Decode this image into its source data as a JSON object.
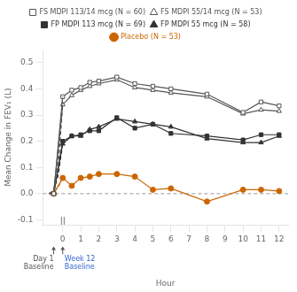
{
  "chart_data": {
    "type": "line",
    "xlabel": "Hour",
    "ylabel": "Mean Change in FEV₁ (L)",
    "xlim": [
      -1.1,
      12.5
    ],
    "xticks": [
      0,
      1,
      2,
      3,
      4,
      5,
      6,
      7,
      8,
      9,
      10,
      11,
      12
    ],
    "ylim": [
      -0.12,
      0.55
    ],
    "yticks": [
      -0.1,
      {
        "value": 0,
        "label": "0.0"
      },
      0.1,
      0.2,
      0.3,
      0.4,
      0.5
    ],
    "x": [
      -0.5,
      0,
      0.5,
      1,
      1.5,
      2,
      3,
      4,
      5,
      6,
      8,
      10,
      11,
      12
    ],
    "pre_x": [
      -0.75,
      -0.5,
      -0.25,
      0
    ],
    "series": [
      {
        "name": "FS MDPI 113/14 mcg (N = 60)",
        "color": "#555555",
        "marker": "square-open",
        "values": [
          0.0,
          0.37,
          0.395,
          0.405,
          0.425,
          0.43,
          0.445,
          0.42,
          0.41,
          0.4,
          0.38,
          0.31,
          0.35,
          0.335
        ],
        "pre_values": [
          0.0,
          0.01,
          0.13,
          0.37
        ]
      },
      {
        "name": "FS MDPI 55/14 mcg (N = 53)",
        "color": "#555555",
        "marker": "triangle-open",
        "values": [
          0.0,
          0.34,
          0.375,
          0.395,
          0.41,
          0.42,
          0.435,
          0.405,
          0.395,
          0.385,
          0.37,
          0.305,
          0.32,
          0.315
        ],
        "pre_values": [
          0.0,
          0.01,
          0.1,
          0.34
        ]
      },
      {
        "name": "FP MDPI 113 mcg (N = 69)",
        "color": "#333333",
        "marker": "square",
        "values": [
          0.0,
          0.2,
          0.22,
          0.225,
          0.24,
          0.24,
          0.29,
          0.25,
          0.265,
          0.23,
          0.22,
          0.205,
          0.225,
          0.225
        ],
        "pre_values": [
          0.0,
          0.01,
          0.08,
          0.2
        ]
      },
      {
        "name": "FP MDPI 55 mcg (N = 58)",
        "color": "#333333",
        "marker": "triangle",
        "values": [
          0.0,
          0.19,
          0.22,
          0.22,
          0.245,
          0.255,
          0.285,
          0.275,
          0.265,
          0.255,
          0.21,
          0.195,
          0.195,
          0.22
        ],
        "pre_values": [
          0.0,
          0.01,
          0.07,
          0.19
        ]
      },
      {
        "name": "Placebo (N = 53)",
        "color": "#cc6600",
        "marker": "circle",
        "values": [
          0.0,
          0.06,
          0.03,
          0.06,
          0.065,
          0.075,
          0.075,
          0.065,
          0.015,
          0.02,
          -0.03,
          0.015,
          0.015,
          0.01
        ],
        "pre_values": [
          0.0,
          0.005,
          0.025,
          0.06
        ]
      }
    ],
    "hlines": [
      {
        "y": 0,
        "color": "#999999",
        "line_style": "dashed"
      }
    ],
    "annotations": [
      {
        "text": "||",
        "x": 0,
        "y": -0.12,
        "color": "#555555"
      },
      {
        "text": "Day 1\nBaseline",
        "x": -0.5,
        "color": "#555555"
      },
      {
        "text": "Week 12\nBaseline",
        "x": 0.1,
        "color": "#3366cc"
      }
    ],
    "arrows": [
      {
        "x": -0.5,
        "color": "#555555"
      },
      {
        "x": 0,
        "color": "#555555"
      }
    ],
    "legend": "top",
    "grid": false
  }
}
